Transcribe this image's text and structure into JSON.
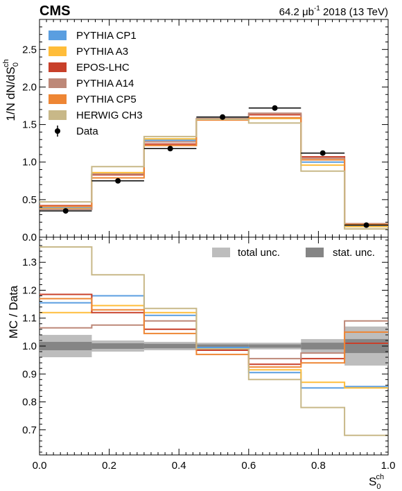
{
  "header": {
    "experiment": "CMS",
    "lumi_prefix": "64.2 μb",
    "lumi_exp": "-1",
    "lumi_suffix": " 2018 (13 TeV)"
  },
  "chart_data": [
    {
      "type": "line",
      "panel": "main",
      "ylabel": "1/N dN/dS",
      "ylabel_sub": "0",
      "ylabel_sup": "ch",
      "ylim": [
        0,
        2.9
      ],
      "xlim": [
        0,
        1
      ],
      "yticks": [
        "0.0",
        "0.5",
        "1.0",
        "1.5",
        "2.0",
        "2.5"
      ],
      "ytick_values": [
        0,
        0.5,
        1.0,
        1.5,
        2.0,
        2.5
      ],
      "bin_edges": [
        0,
        0.15,
        0.3,
        0.45,
        0.6,
        0.75,
        0.875,
        1.0
      ],
      "series": [
        {
          "name": "PYTHIA CP1",
          "color": "#5a9ee0",
          "values": [
            0.39,
            0.84,
            1.29,
            1.58,
            1.58,
            1.0,
            0.14
          ]
        },
        {
          "name": "PYTHIA A3",
          "color": "#ffbd3a",
          "values": [
            0.38,
            0.86,
            1.31,
            1.57,
            1.58,
            0.96,
            0.14
          ]
        },
        {
          "name": "EPOS-LHC",
          "color": "#c8402a",
          "values": [
            0.42,
            0.83,
            1.24,
            1.57,
            1.63,
            1.07,
            0.17
          ]
        },
        {
          "name": "PYTHIA A14",
          "color": "#bd8878",
          "values": [
            0.37,
            0.84,
            1.27,
            1.58,
            1.65,
            1.05,
            0.18
          ]
        },
        {
          "name": "PYTHIA CP5",
          "color": "#ee8634",
          "values": [
            0.41,
            0.79,
            1.22,
            1.56,
            1.59,
            1.03,
            0.17
          ]
        },
        {
          "name": "HERWIG CH3",
          "color": "#c8b888",
          "values": [
            0.47,
            0.94,
            1.34,
            1.57,
            1.52,
            0.88,
            0.11
          ]
        }
      ],
      "data": {
        "name": "Data",
        "x": [
          0.075,
          0.225,
          0.375,
          0.525,
          0.675,
          0.8125,
          0.9375
        ],
        "y": [
          0.35,
          0.75,
          1.18,
          1.6,
          1.72,
          1.12,
          0.16
        ]
      }
    },
    {
      "type": "line",
      "panel": "ratio",
      "ylabel": "MC / Data",
      "ylim": [
        0.61,
        1.39
      ],
      "xlim": [
        0,
        1
      ],
      "xlabel": "S",
      "xlabel_sub": "0",
      "xlabel_sup": "ch",
      "xticks": [
        "0.0",
        "0.2",
        "0.4",
        "0.6",
        "0.8",
        "1.0"
      ],
      "xtick_values": [
        0,
        0.2,
        0.4,
        0.6,
        0.8,
        1.0
      ],
      "yticks": [
        "0.7",
        "0.8",
        "0.9",
        "1.0",
        "1.1",
        "1.2",
        "1.3"
      ],
      "ytick_values": [
        0.7,
        0.8,
        0.9,
        1.0,
        1.1,
        1.2,
        1.3
      ],
      "bin_edges": [
        0,
        0.15,
        0.3,
        0.45,
        0.6,
        0.75,
        0.875,
        1.0
      ],
      "series": [
        {
          "name": "PYTHIA CP1",
          "color": "#5a9ee0",
          "values": [
            1.155,
            1.18,
            1.11,
            0.995,
            0.905,
            0.85,
            0.855
          ]
        },
        {
          "name": "PYTHIA A3",
          "color": "#ffbd3a",
          "values": [
            1.12,
            1.145,
            1.12,
            0.985,
            0.915,
            0.87,
            0.85
          ]
        },
        {
          "name": "EPOS-LHC",
          "color": "#c8402a",
          "values": [
            1.185,
            1.12,
            1.06,
            0.985,
            0.935,
            0.955,
            1.01
          ]
        },
        {
          "name": "PYTHIA A14",
          "color": "#bd8878",
          "values": [
            1.065,
            1.075,
            1.09,
            0.99,
            0.955,
            0.975,
            1.09
          ]
        },
        {
          "name": "PYTHIA CP5",
          "color": "#ee8634",
          "values": [
            1.17,
            1.13,
            1.045,
            0.97,
            0.925,
            0.94,
            1.05
          ]
        },
        {
          "name": "HERWIG CH3",
          "color": "#c8b888",
          "values": [
            1.355,
            1.255,
            1.135,
            0.99,
            0.88,
            0.78,
            0.68
          ]
        }
      ],
      "total_unc": [
        0.04,
        0.02,
        0.015,
        0.012,
        0.012,
        0.025,
        0.07
      ],
      "stat_unc": [
        0.015,
        0.01,
        0.008,
        0.006,
        0.006,
        0.012,
        0.025
      ],
      "legend_unc": [
        "total unc.",
        "stat. unc."
      ],
      "unc_colors": {
        "total": "#bdbdbd",
        "stat": "#858585"
      }
    }
  ]
}
